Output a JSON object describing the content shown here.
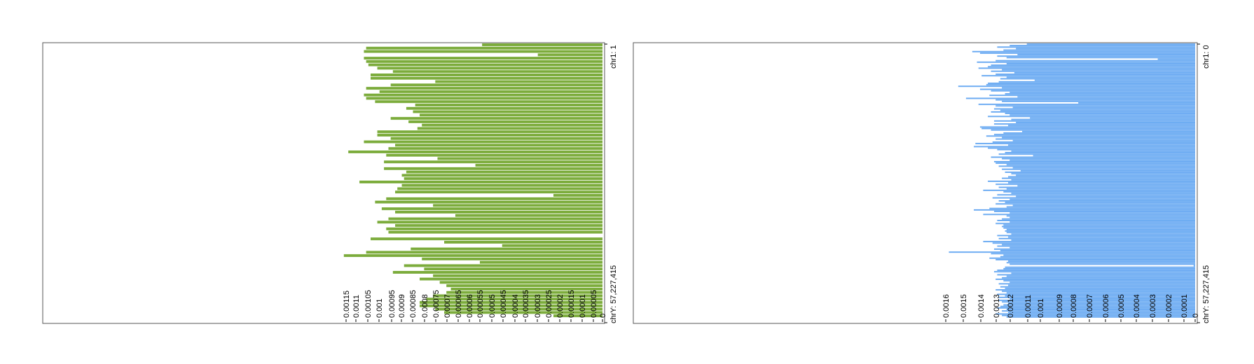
{
  "chart_data": [
    {
      "type": "bar",
      "orientation": "horizontal",
      "direction": "right-to-left",
      "color": "#7cac3c",
      "chrom_start_label": "chr1: 1",
      "chrom_end_label": "chrY: 57,227,415",
      "xlim": [
        0,
        0.00125
      ],
      "ticks": [
        "0.00115",
        "0.0011",
        "0.00105",
        "0.001",
        "0.00095",
        "0.0009",
        "0.00085",
        "0.0008",
        "0.00075",
        "0.0007",
        "0.00065",
        "0.0006",
        "0.00055",
        "0.0005",
        "0.00045",
        "0.0004",
        "0.00035",
        "0.0003",
        "0.00025",
        "0.0002",
        "0.00015",
        "0.0001",
        "0.00005",
        "0"
      ],
      "values": [
        0.00054,
        0.00106,
        0.00107,
        0.00029,
        0.00107,
        0.00106,
        0.00105,
        0.00101,
        0.00094,
        0.00104,
        0.00104,
        0.00075,
        0.00095,
        0.00106,
        0.001,
        0.00107,
        0.00106,
        0.00102,
        0.00084,
        0.00088,
        0.00085,
        0.00082,
        0.00095,
        0.00087,
        0.00081,
        0.00083,
        0.00101,
        0.00101,
        0.00095,
        0.00107,
        0.00093,
        0.00096,
        0.00114,
        0.00097,
        0.00074,
        0.00098,
        0.00057,
        0.00098,
        0.00088,
        0.0009,
        0.00089,
        0.00109,
        0.0009,
        0.00092,
        0.00093,
        0.00022,
        0.00097,
        0.00102,
        0.00076,
        0.00099,
        0.00093,
        0.00066,
        0.00096,
        0.00101,
        0.00093,
        0.00097,
        0.00096,
        0.0,
        0.00104,
        0.00071,
        0.00045,
        0.00086,
        0.00106,
        0.00116,
        0.00081,
        0.00055,
        0.00089,
        0.0008,
        0.00094,
        0.00076,
        0.00082,
        0.00073,
        0.0007,
        0.00068,
        0.0007,
        0.00076,
        0.00079,
        0.00082,
        0.00082,
        0.00075,
        0.00071,
        0.00022
      ]
    },
    {
      "type": "bar",
      "orientation": "horizontal",
      "direction": "right-to-left",
      "color": "#6aaaf2",
      "chrom_start_label": "chr1: 0",
      "chrom_end_label": "chrY: 57,227,415",
      "xlim": [
        0,
        0.00172
      ],
      "ticks": [
        "0.0016",
        "0.0015",
        "0.0014",
        "0.0013",
        "0.0012",
        "0.0011",
        "0.001",
        "0.0009",
        "0.0008",
        "0.0007",
        "0.0006",
        "0.0005",
        "0.0004",
        "0.0003",
        "0.0002",
        "0.0001",
        "0"
      ],
      "values": [
        0.00108,
        0.00119,
        0.00127,
        0.00115,
        0.00123,
        0.00143,
        0.00138,
        0.00114,
        0.00127,
        0.00121,
        0.00024,
        0.00128,
        0.0014,
        0.00121,
        0.00131,
        0.00133,
        0.00139,
        0.00124,
        0.00131,
        0.00116,
        0.00128,
        0.00137,
        0.00121,
        0.00125,
        0.00103,
        0.00126,
        0.00133,
        0.00134,
        0.00152,
        0.00124,
        0.00138,
        0.00131,
        0.00119,
        0.00122,
        0.00132,
        0.00114,
        0.00147,
        0.00128,
        0.00124,
        0.00075,
        0.00139,
        0.00128,
        0.00117,
        0.00129,
        0.00125,
        0.00131,
        0.00122,
        0.00119,
        0.00133,
        0.00106,
        0.00118,
        0.00129,
        0.00115,
        0.00129,
        0.0012,
        0.00138,
        0.00137,
        0.00131,
        0.00111,
        0.00123,
        0.00129,
        0.00134,
        0.00124,
        0.00128,
        0.00117,
        0.0013,
        0.00141,
        0.0012,
        0.00142,
        0.00133,
        0.00127,
        0.00118,
        0.00122,
        0.00126,
        0.00104,
        0.00131,
        0.00124,
        0.00119,
        0.00129,
        0.00128,
        0.00121,
        0.00126,
        0.00117,
        0.00124,
        0.00112,
        0.00122,
        0.00118,
        0.00115,
        0.0012,
        0.00124,
        0.00118,
        0.00133,
        0.0012,
        0.00128,
        0.00114,
        0.00126,
        0.00121,
        0.00136,
        0.00123,
        0.00118,
        0.00127,
        0.00115,
        0.0013,
        0.00119,
        0.00126,
        0.00122,
        0.00128,
        0.00117,
        0.00121,
        0.00132,
        0.00142,
        0.00129,
        0.00119,
        0.00136,
        0.00121,
        0.00119,
        0.00124,
        0.00127,
        0.00119,
        0.00128,
        0.00123,
        0.00124,
        0.00123,
        0.00121,
        0.00122,
        0.00121,
        0.00118,
        0.00127,
        0.0012,
        0.00126,
        0.00118,
        0.00136,
        0.0013,
        0.00124,
        0.00127,
        0.00119,
        0.00129,
        0.00125,
        0.00158,
        0.00131,
        0.00123,
        0.00125,
        0.00132,
        0.00128,
        0.0012,
        0.00121,
        0.00119,
        1e-05,
        0.00122,
        0.00123,
        0.00127,
        0.00129,
        0.00118,
        0.00127,
        0.00121,
        0.00124,
        0.00128,
        0.00123,
        0.00119,
        0.00126,
        0.0012,
        0.00125,
        0.00122,
        0.00128,
        0.00124,
        0.00121,
        0.00127,
        0.00122,
        0.00126,
        0.00119,
        0.00126,
        0.00124,
        0.0012,
        0.00123,
        0.00125,
        0.00127,
        0.00121,
        0.00124,
        0.0012,
        0.00128,
        0.00124,
        0.00121
      ]
    }
  ]
}
